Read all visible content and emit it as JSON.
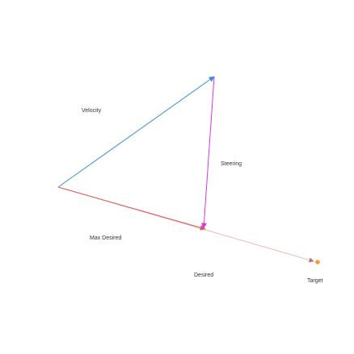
{
  "labels": {
    "velocity": "Velocity",
    "steering": "Steering",
    "max_desired": "Max Desired",
    "desired": "Desired",
    "target": "Target"
  },
  "colors": {
    "velocity": "#3a8fd6",
    "steering": "#e233e8",
    "desired": "#e05a5a",
    "desired_faint": "#e8b8b8",
    "target": "#f0a030",
    "text": "#333333"
  }
}
